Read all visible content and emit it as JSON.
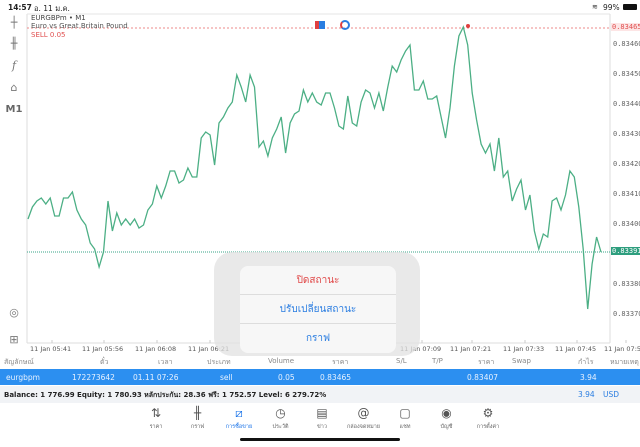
{
  "status_bar": {
    "time": "14:57",
    "date": "อ. 11 ม.ค.",
    "battery": "99%"
  },
  "chart": {
    "symbol_line": "EURGBPm • M1",
    "description": "Euro vs Great Britain Pound",
    "order_label": "SELL 0.05",
    "order_price": "0.83465",
    "current_price": "0.83391",
    "colors": {
      "line": "#4caf85",
      "sell": "#e05050",
      "bid": "#2e9e7e"
    }
  },
  "chart_data": {
    "type": "line",
    "ylim": [
      0.83362,
      0.8347
    ],
    "y_ticks": [
      "0.83460",
      "0.83450",
      "0.83440",
      "0.83430",
      "0.83420",
      "0.83410",
      "0.83400",
      "0.83380",
      "0.83370"
    ],
    "x_ticks": [
      "11 Jan 05:41",
      "11 Jan 05:56",
      "11 Jan 06:08",
      "11 Jan 06:21",
      "11 Jan 07:09",
      "11 Jan 07:21",
      "11 Jan 07:33",
      "11 Jan 07:45",
      "11 Jan 07:57"
    ],
    "values": [
      0.83402,
      0.83406,
      0.83408,
      0.83409,
      0.83407,
      0.83409,
      0.83403,
      0.83403,
      0.83409,
      0.83409,
      0.83411,
      0.83405,
      0.83402,
      0.834,
      0.83394,
      0.83392,
      0.83386,
      0.83391,
      0.83408,
      0.83398,
      0.83404,
      0.834,
      0.83402,
      0.834,
      0.83402,
      0.83399,
      0.834,
      0.83405,
      0.83407,
      0.83413,
      0.83409,
      0.83413,
      0.83418,
      0.83418,
      0.83414,
      0.83415,
      0.83419,
      0.83416,
      0.83416,
      0.83429,
      0.83431,
      0.8343,
      0.8342,
      0.83434,
      0.83436,
      0.83439,
      0.83441,
      0.8345,
      0.83446,
      0.83441,
      0.8345,
      0.83446,
      0.83426,
      0.83428,
      0.83423,
      0.83429,
      0.83432,
      0.83436,
      0.83424,
      0.83434,
      0.83437,
      0.83438,
      0.83445,
      0.83441,
      0.83444,
      0.83441,
      0.8344,
      0.83444,
      0.83444,
      0.83439,
      0.83433,
      0.83432,
      0.83443,
      0.83434,
      0.83433,
      0.83441,
      0.83445,
      0.83444,
      0.83439,
      0.83444,
      0.83438,
      0.83446,
      0.83453,
      0.83451,
      0.83455,
      0.83458,
      0.8346,
      0.83445,
      0.83445,
      0.83448,
      0.83442,
      0.83442,
      0.83443,
      0.83436,
      0.83429,
      0.83439,
      0.83453,
      0.83463,
      0.83466,
      0.8346,
      0.83444,
      0.83435,
      0.83427,
      0.83424,
      0.83427,
      0.83418,
      0.83429,
      0.83416,
      0.83418,
      0.83408,
      0.83412,
      0.83415,
      0.83405,
      0.8341,
      0.83398,
      0.83392,
      0.83397,
      0.83396,
      0.83408,
      0.83409,
      0.83405,
      0.8341,
      0.83418,
      0.83416,
      0.83406,
      0.83392,
      0.83372,
      0.83387,
      0.83396,
      0.83391
    ]
  },
  "left_toolbar": {
    "timeframe": "M1"
  },
  "dialog": {
    "close_position": "ปิดสถานะ",
    "modify_position": "ปรับเปลี่ยนสถานะ",
    "chart": "กราฟ"
  },
  "table": {
    "headers": [
      "สัญลักษณ์",
      "ตั๋ว",
      "เวลา",
      "ประเภท",
      "Volume",
      "ราคา",
      "S/L",
      "T/P",
      "ราคา",
      "Swap",
      "กำไร",
      "หมายเหตุ"
    ],
    "row": {
      "symbol": "eurgbpm",
      "ticket": "172273642",
      "time": "01.11 07:26",
      "type": "sell",
      "volume": "0.05",
      "open_price": "0.83465",
      "current_price": "0.83407",
      "profit": "3.94"
    },
    "summary": "Balance: 1 776.99 Equity: 1 780.93 หลักประกัน: 28.36 ฟรี: 1 752.57 Level: 6 279.72%",
    "total_profit": "3.94",
    "currency": "USD"
  },
  "tabs": [
    {
      "label": "ราคา",
      "icon": "quotes-icon"
    },
    {
      "label": "กราฟ",
      "icon": "chart-icon"
    },
    {
      "label": "การซื้อขาย",
      "icon": "trade-icon",
      "active": true
    },
    {
      "label": "ประวัติ",
      "icon": "history-icon"
    },
    {
      "label": "ข่าว",
      "icon": "news-icon"
    },
    {
      "label": "กล่องจดหมาย",
      "icon": "mailbox-icon"
    },
    {
      "label": "แชท",
      "icon": "chat-icon"
    },
    {
      "label": "บัญชี",
      "icon": "account-icon"
    },
    {
      "label": "การตั้งค่า",
      "icon": "settings-icon"
    }
  ]
}
